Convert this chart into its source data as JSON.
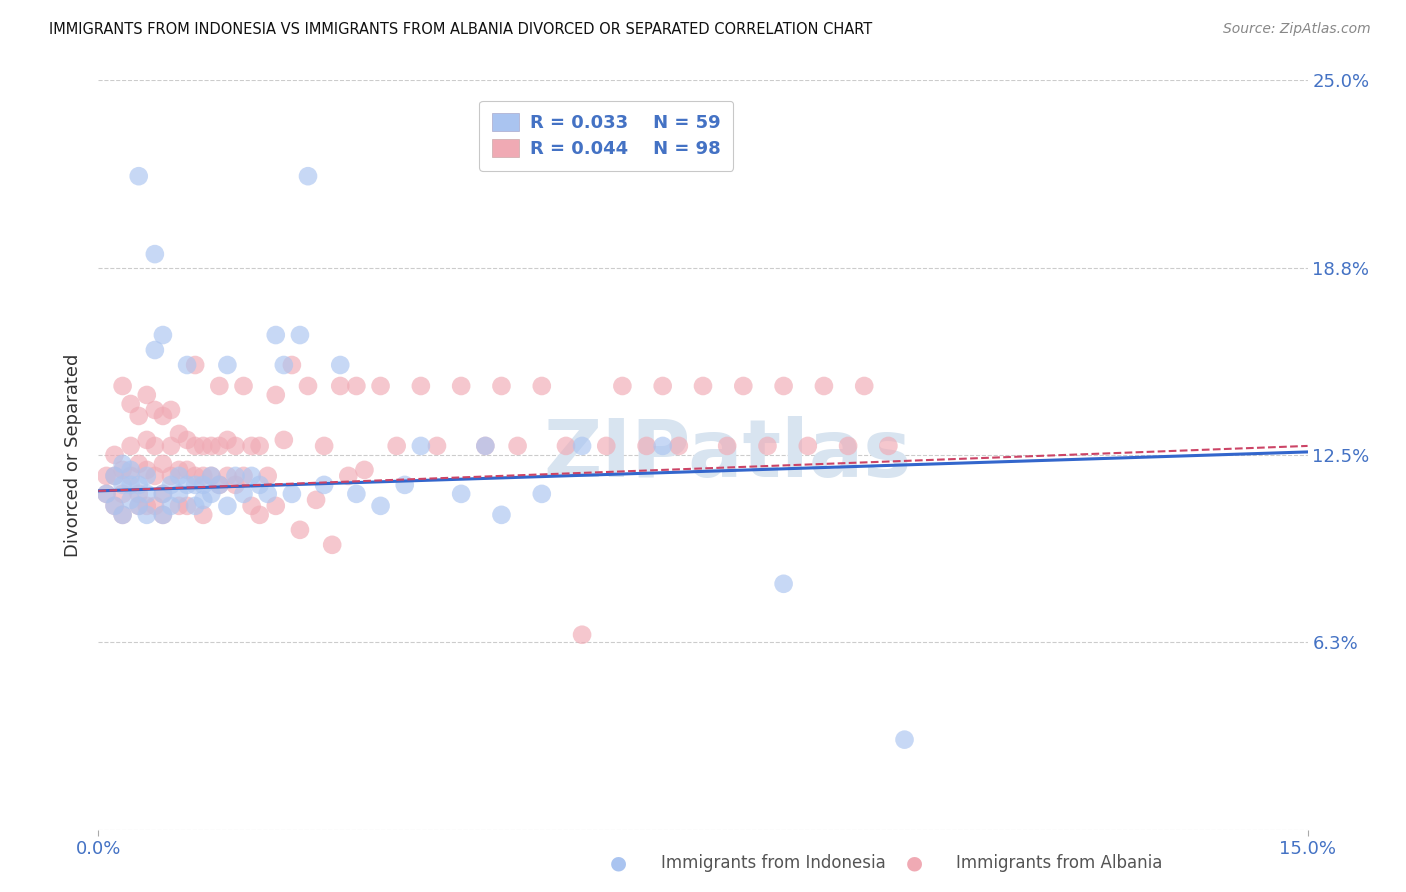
{
  "title": "IMMIGRANTS FROM INDONESIA VS IMMIGRANTS FROM ALBANIA DIVORCED OR SEPARATED CORRELATION CHART",
  "source": "Source: ZipAtlas.com",
  "ylabel": "Divorced or Separated",
  "xlim": [
    0.0,
    0.15
  ],
  "ylim": [
    0.0,
    0.25
  ],
  "yticks": [
    0.0,
    0.0625,
    0.125,
    0.1875,
    0.25
  ],
  "ytick_labels": [
    "",
    "6.3%",
    "12.5%",
    "18.8%",
    "25.0%"
  ],
  "xticks": [
    0.0,
    0.15
  ],
  "xtick_labels": [
    "0.0%",
    "15.0%"
  ],
  "color_indonesia": "#aac4f0",
  "color_albania": "#f0aab4",
  "trendline_indonesia_color": "#3366cc",
  "trendline_albania_color": "#cc4466",
  "watermark": "ZIPatlas",
  "indonesia_x": [
    0.001,
    0.002,
    0.002,
    0.003,
    0.003,
    0.003,
    0.004,
    0.004,
    0.004,
    0.005,
    0.005,
    0.005,
    0.006,
    0.006,
    0.006,
    0.007,
    0.007,
    0.008,
    0.008,
    0.008,
    0.009,
    0.009,
    0.01,
    0.01,
    0.011,
    0.011,
    0.012,
    0.012,
    0.013,
    0.013,
    0.014,
    0.014,
    0.015,
    0.016,
    0.016,
    0.017,
    0.018,
    0.019,
    0.02,
    0.021,
    0.022,
    0.023,
    0.024,
    0.025,
    0.026,
    0.028,
    0.03,
    0.032,
    0.035,
    0.038,
    0.04,
    0.045,
    0.048,
    0.05,
    0.055,
    0.06,
    0.07,
    0.085,
    0.1
  ],
  "indonesia_y": [
    0.112,
    0.108,
    0.118,
    0.115,
    0.105,
    0.122,
    0.11,
    0.12,
    0.115,
    0.218,
    0.108,
    0.115,
    0.105,
    0.118,
    0.112,
    0.192,
    0.16,
    0.112,
    0.165,
    0.105,
    0.115,
    0.108,
    0.118,
    0.112,
    0.155,
    0.115,
    0.115,
    0.108,
    0.115,
    0.11,
    0.118,
    0.112,
    0.115,
    0.108,
    0.155,
    0.118,
    0.112,
    0.118,
    0.115,
    0.112,
    0.165,
    0.155,
    0.112,
    0.165,
    0.218,
    0.115,
    0.155,
    0.112,
    0.108,
    0.115,
    0.128,
    0.112,
    0.128,
    0.105,
    0.112,
    0.128,
    0.128,
    0.082,
    0.03
  ],
  "albania_x": [
    0.001,
    0.001,
    0.002,
    0.002,
    0.002,
    0.003,
    0.003,
    0.003,
    0.003,
    0.004,
    0.004,
    0.004,
    0.005,
    0.005,
    0.005,
    0.005,
    0.006,
    0.006,
    0.006,
    0.006,
    0.007,
    0.007,
    0.007,
    0.007,
    0.008,
    0.008,
    0.008,
    0.008,
    0.009,
    0.009,
    0.009,
    0.01,
    0.01,
    0.01,
    0.011,
    0.011,
    0.011,
    0.012,
    0.012,
    0.012,
    0.013,
    0.013,
    0.013,
    0.014,
    0.014,
    0.015,
    0.015,
    0.015,
    0.016,
    0.016,
    0.017,
    0.017,
    0.018,
    0.018,
    0.019,
    0.019,
    0.02,
    0.02,
    0.021,
    0.022,
    0.022,
    0.023,
    0.024,
    0.025,
    0.026,
    0.027,
    0.028,
    0.029,
    0.03,
    0.031,
    0.032,
    0.033,
    0.035,
    0.037,
    0.04,
    0.042,
    0.045,
    0.048,
    0.05,
    0.052,
    0.055,
    0.058,
    0.06,
    0.063,
    0.065,
    0.068,
    0.07,
    0.072,
    0.075,
    0.078,
    0.08,
    0.083,
    0.085,
    0.088,
    0.09,
    0.093,
    0.095,
    0.098
  ],
  "albania_y": [
    0.118,
    0.112,
    0.125,
    0.118,
    0.108,
    0.148,
    0.12,
    0.112,
    0.105,
    0.142,
    0.128,
    0.118,
    0.138,
    0.122,
    0.112,
    0.108,
    0.145,
    0.13,
    0.12,
    0.108,
    0.128,
    0.118,
    0.108,
    0.14,
    0.138,
    0.122,
    0.112,
    0.105,
    0.14,
    0.128,
    0.118,
    0.132,
    0.12,
    0.108,
    0.13,
    0.12,
    0.108,
    0.155,
    0.128,
    0.118,
    0.128,
    0.118,
    0.105,
    0.128,
    0.118,
    0.148,
    0.128,
    0.115,
    0.13,
    0.118,
    0.128,
    0.115,
    0.148,
    0.118,
    0.128,
    0.108,
    0.128,
    0.105,
    0.118,
    0.145,
    0.108,
    0.13,
    0.155,
    0.1,
    0.148,
    0.11,
    0.128,
    0.095,
    0.148,
    0.118,
    0.148,
    0.12,
    0.148,
    0.128,
    0.148,
    0.128,
    0.148,
    0.128,
    0.148,
    0.128,
    0.148,
    0.128,
    0.065,
    0.128,
    0.148,
    0.128,
    0.148,
    0.128,
    0.148,
    0.128,
    0.148,
    0.128,
    0.148,
    0.128,
    0.148,
    0.128,
    0.148,
    0.128
  ],
  "trendline_ind_x0": 0.0,
  "trendline_ind_y0": 0.113,
  "trendline_ind_x1": 0.15,
  "trendline_ind_y1": 0.126,
  "trendline_alb_x0": 0.0,
  "trendline_alb_y0": 0.113,
  "trendline_alb_x1": 0.15,
  "trendline_alb_y1": 0.128
}
